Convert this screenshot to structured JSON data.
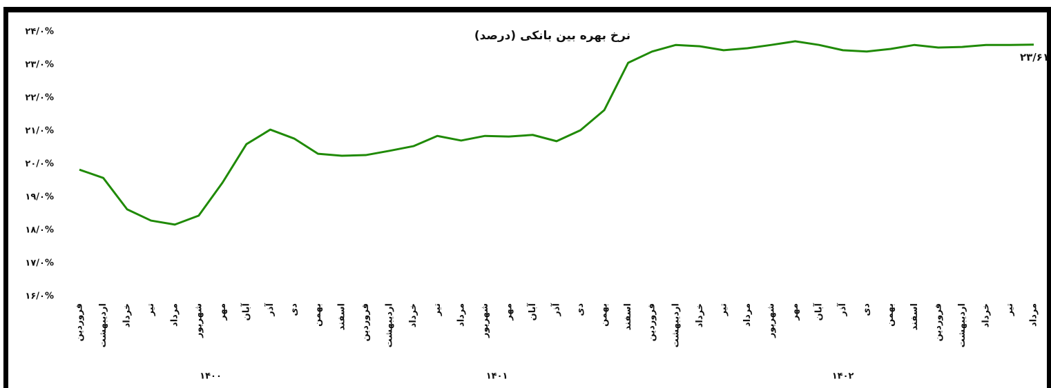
{
  "chart_data": {
    "type": "line",
    "title": "نرخ بهره بین بانکی (درصد)",
    "categories": [
      "فروردین",
      "اردیبهشت",
      "خرداد",
      "تیر",
      "مرداد",
      "شهریور",
      "مهر",
      "آبان",
      "آذر",
      "دی",
      "بهمن",
      "اسفند",
      "فروردین",
      "اردیبهشت",
      "خرداد",
      "تیر",
      "مرداد",
      "شهریور",
      "مهر",
      "آبان",
      "آذر",
      "دی",
      "بهمن",
      "اسفند",
      "فروردین",
      "اردیبهشت",
      "خرداد",
      "تیر",
      "مرداد",
      "شهریور",
      "مهر",
      "آبان",
      "آذر",
      "دی",
      "بهمن",
      "اسفند",
      "فروردین",
      "اردیبهشت",
      "خرداد",
      "تیر",
      "مرداد"
    ],
    "groups": [
      "۱۴۰۰",
      "۱۴۰۱",
      "۱۴۰۲"
    ],
    "series": [
      {
        "name": "نرخ بهره بین بانکی",
        "color": "#1f8a06",
        "values": [
          19.83,
          19.58,
          18.63,
          18.29,
          18.17,
          18.44,
          19.44,
          20.6,
          21.04,
          20.77,
          20.31,
          20.25,
          20.27,
          20.4,
          20.54,
          20.85,
          20.71,
          20.85,
          20.83,
          20.88,
          20.69,
          21.02,
          21.63,
          23.06,
          23.4,
          23.6,
          23.56,
          23.44,
          23.5,
          23.6,
          23.71,
          23.6,
          23.44,
          23.4,
          23.48,
          23.6,
          23.52,
          23.54,
          23.6,
          23.6,
          23.61
        ],
        "last_value_label": "۲۳/۶۱"
      }
    ],
    "ylim": [
      16,
      24
    ],
    "yticks": [
      {
        "value": 16,
        "label": "۱۶/۰%"
      },
      {
        "value": 17,
        "label": "۱۷/۰%"
      },
      {
        "value": 18,
        "label": "۱۸/۰%"
      },
      {
        "value": 19,
        "label": "۱۹/۰%"
      },
      {
        "value": 20,
        "label": "۲۰/۰%"
      },
      {
        "value": 21,
        "label": "۲۱/۰%"
      },
      {
        "value": 22,
        "label": "۲۲/۰%"
      },
      {
        "value": 23,
        "label": "۲۳/۰%"
      },
      {
        "value": 24,
        "label": "۲۴/۰%"
      }
    ],
    "grid": false
  }
}
